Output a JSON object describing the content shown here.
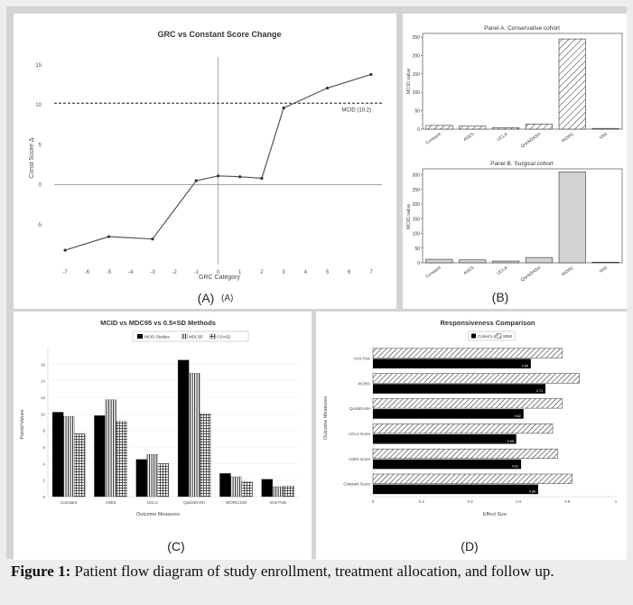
{
  "caption": {
    "label": "Figure 1:",
    "text": " Patient flow diagram of study enrollment, treatment allocation, and follow up."
  },
  "chart_data": [
    {
      "id": "A",
      "type": "line",
      "title": "GRC vs Constant Score Change",
      "xlabel": "GRC Category",
      "ylabel": "Const Score Δ",
      "x": [
        -7,
        -5,
        -3,
        -1,
        0,
        1,
        2,
        3,
        5,
        7
      ],
      "y": [
        -8.2,
        -6.5,
        -6.8,
        0.5,
        1.1,
        1.0,
        0.8,
        9.6,
        12.1,
        13.8
      ],
      "xlim": [
        -7.5,
        7.5
      ],
      "ylim": [
        -10,
        16
      ],
      "xticks": [
        -7,
        -6,
        -5,
        -4,
        -3,
        -2,
        -1,
        0,
        1,
        2,
        3,
        4,
        5,
        6,
        7
      ],
      "yticks": [
        -5,
        0,
        5,
        10,
        15
      ],
      "mcid_line": 10.2,
      "mcid_label": "MCID (10.2)",
      "panel_label": "(A)",
      "panel_label2": "(A)"
    },
    {
      "id": "B1",
      "type": "bar",
      "title": "Panel A. Conservative cohort",
      "ylabel": "MCID value",
      "categories": [
        "Constant",
        "ASES",
        "UCLA",
        "QuickDASH",
        "WORC",
        "VAS"
      ],
      "values": [
        10,
        8,
        4,
        14,
        245,
        2
      ],
      "ylim": [
        0,
        260
      ],
      "yticks": [
        0,
        50,
        100,
        150,
        200,
        250
      ]
    },
    {
      "id": "B2",
      "type": "bar",
      "title": "Panel B. Surgical cohort",
      "ylabel": "MCID value",
      "categories": [
        "Constant",
        "ASES",
        "UCLA",
        "QuickDASH",
        "WORC",
        "VAS"
      ],
      "values": [
        12,
        10,
        6,
        18,
        310,
        2
      ],
      "ylim": [
        0,
        320
      ],
      "yticks": [
        0,
        50,
        100,
        150,
        200,
        250,
        300
      ],
      "panel_label": "(B)"
    },
    {
      "id": "C",
      "type": "bar",
      "title": "MCID vs MDC95 vs 0.5×SD Methods",
      "xlabel": "Outcome Measures",
      "ylabel": "Points/Values",
      "categories": [
        "Constant",
        "ASES",
        "UCLA",
        "QuickDASH",
        "WORC/100",
        "VAS Pain"
      ],
      "series": [
        {
          "name": "MCID Studies",
          "values": [
            10.2,
            9.8,
            4.5,
            16.5,
            2.8,
            2.1
          ]
        },
        {
          "name": "MDC95",
          "values": [
            9.7,
            11.7,
            5.1,
            14.9,
            2.4,
            1.2
          ]
        },
        {
          "name": "0.5×SD",
          "values": [
            7.6,
            9.1,
            4.0,
            10.0,
            1.8,
            1.3
          ]
        }
      ],
      "ylim": [
        0,
        18
      ],
      "yticks": [
        0,
        2,
        4,
        6,
        8,
        10,
        12,
        14,
        16
      ],
      "panel_label": "(C)"
    },
    {
      "id": "D",
      "type": "bar",
      "orientation": "horizontal",
      "title": "Responsiveness Comparison",
      "xlabel": "Effect Size",
      "ylabel": "Outcome Measures",
      "categories": [
        "Constant Score",
        "ASES Score",
        "UCLA Score",
        "QuickDASH",
        "WORC",
        "VAS Pain"
      ],
      "series": [
        {
          "name": "Cohen's d",
          "values": [
            0.68,
            0.61,
            0.59,
            0.62,
            0.71,
            0.65
          ],
          "labels": [
            "0.68",
            "0.61",
            "0.59",
            "0.62",
            "0.71",
            "0.65"
          ]
        },
        {
          "name": "SRM",
          "values": [
            0.82,
            0.76,
            0.74,
            0.78,
            0.85,
            0.78
          ]
        }
      ],
      "xlim": [
        0,
        1
      ],
      "xticks": [
        0,
        0.2,
        0.4,
        0.6,
        0.8,
        1
      ],
      "panel_label": "(D)"
    }
  ]
}
